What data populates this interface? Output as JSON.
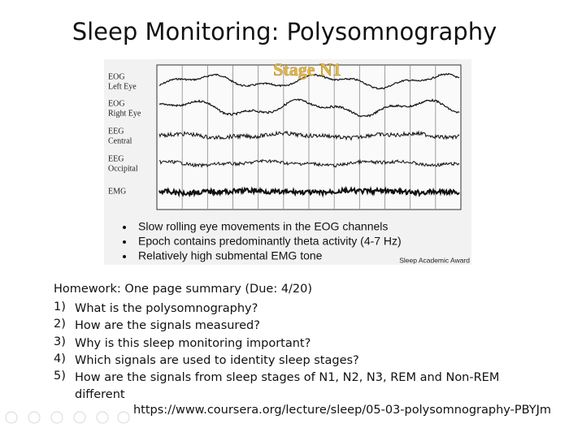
{
  "title": "Sleep Monitoring: Polysomnography",
  "figure": {
    "stage": "Stage N1",
    "channels": [
      {
        "label": "EOG",
        "sublabel": "Left Eye"
      },
      {
        "label": "EOG",
        "sublabel": "Right Eye"
      },
      {
        "label": "EEG",
        "sublabel": "Central"
      },
      {
        "label": "EEG",
        "sublabel": "Occipital"
      },
      {
        "label": "EMG"
      }
    ],
    "bullets": [
      "Slow rolling eye movements in the EOG channels",
      "Epoch contains predominantly theta activity (4-7 Hz)",
      "Relatively high submental EMG tone"
    ],
    "credit": "Sleep Academic Award"
  },
  "homework": {
    "heading": "Homework: One page summary (Due: 4/20)",
    "items": [
      {
        "number": "1)",
        "text": "What is the polysomnography?"
      },
      {
        "number": "2)",
        "text": "How are the signals measured?"
      },
      {
        "number": "3)",
        "text": "Why is this sleep monitoring important?"
      },
      {
        "number": "4)",
        "text": "Which signals are used to identity sleep stages?"
      },
      {
        "number": "5)",
        "text": "How are the signals from sleep stages of N1, N2, N3, REM and Non-REM different"
      }
    ]
  },
  "url": "https://www.coursera.org/lecture/sleep/05-03-polysomnography-PBYJm"
}
